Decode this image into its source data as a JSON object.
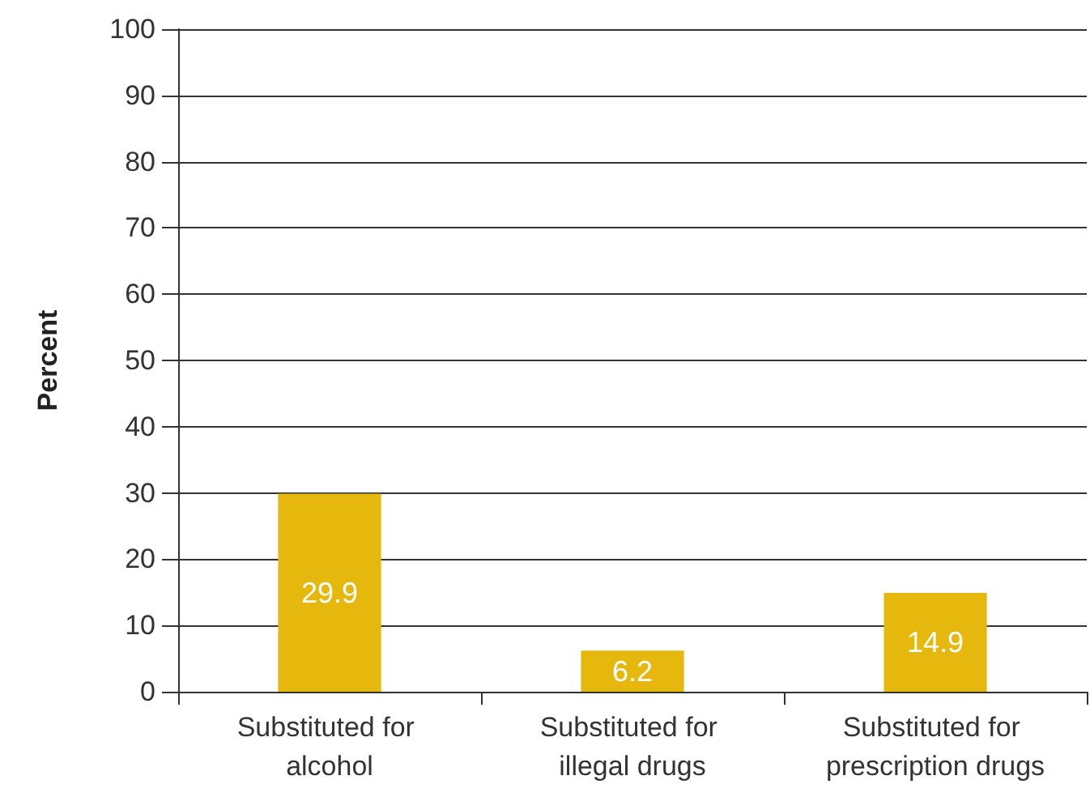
{
  "chart_data": {
    "type": "bar",
    "ylabel": "Percent",
    "categories": [
      "Substituted for alcohol",
      "Substituted for illegal drugs",
      "Substituted for prescription drugs"
    ],
    "values": [
      29.9,
      6.2,
      14.9
    ],
    "color": "#e6b70c",
    "ylim": [
      0,
      100
    ],
    "yticks": [
      0,
      10,
      20,
      30,
      40,
      50,
      60,
      70,
      80,
      90,
      100
    ],
    "grid": "y",
    "data_labels": true
  }
}
